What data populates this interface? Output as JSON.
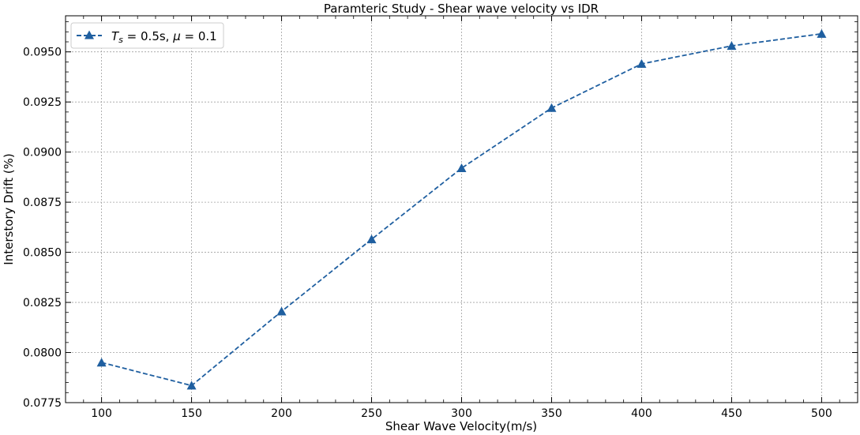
{
  "chart_data": {
    "type": "line",
    "title": "Paramteric Study - Shear wave velocity vs IDR",
    "xlabel": "Shear Wave Velocity(m/s)",
    "ylabel": "Interstory Drift (%)",
    "xlim": [
      80,
      520
    ],
    "ylim": [
      0.0775,
      0.0968
    ],
    "x_ticks": [
      100,
      150,
      200,
      250,
      300,
      350,
      400,
      450,
      500
    ],
    "x_tick_labels": [
      "100",
      "150",
      "200",
      "250",
      "300",
      "350",
      "400",
      "450",
      "500"
    ],
    "y_ticks": [
      0.0775,
      0.08,
      0.0825,
      0.085,
      0.0875,
      0.09,
      0.0925,
      0.095
    ],
    "y_tick_labels": [
      "0.0775",
      "0.0800",
      "0.0825",
      "0.0850",
      "0.0875",
      "0.0900",
      "0.0925",
      "0.0950"
    ],
    "grid": true,
    "legend_position": "top-left",
    "series": [
      {
        "name": "T_s = 0.5s, μ = 0.1",
        "color": "#1f5fa0",
        "line_style": "dashed",
        "marker": "triangle-up",
        "x": [
          100,
          150,
          200,
          250,
          300,
          350,
          400,
          450,
          500
        ],
        "y": [
          0.0795,
          0.07835,
          0.08205,
          0.08565,
          0.0892,
          0.0922,
          0.0944,
          0.0953,
          0.0959
        ]
      }
    ]
  },
  "legend": {
    "t_symbol": "T",
    "t_subscript": "s",
    "t_value": " = 0.5s, ",
    "mu_symbol": "μ",
    "mu_value": " = 0.1"
  }
}
